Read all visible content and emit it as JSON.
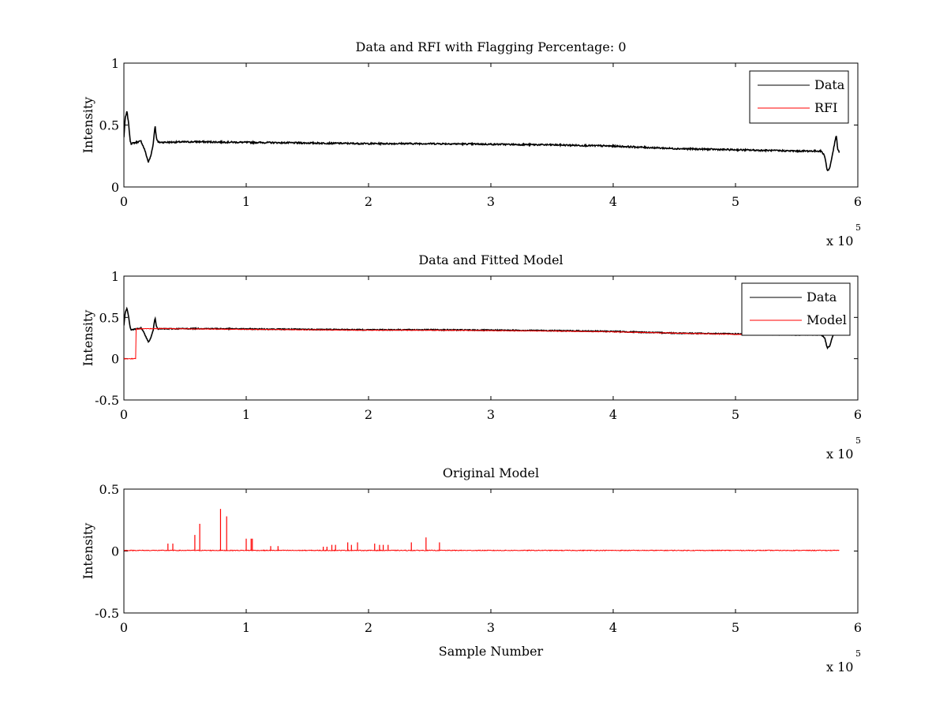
{
  "figure": {
    "background": "#ffffff",
    "data_color": "#000000",
    "rfi_color": "#ff0000"
  },
  "chart_data": [
    {
      "type": "line",
      "title": "Data and RFI with Flagging Percentage: 0",
      "xlabel": "",
      "ylabel": "Intensity",
      "xlim": [
        0,
        600000
      ],
      "ylim": [
        0,
        1
      ],
      "x_ticks": [
        "0",
        "1",
        "2",
        "3",
        "4",
        "5",
        "6"
      ],
      "y_ticks": [
        "0",
        "0.5",
        "1"
      ],
      "y_tick_values": [
        0,
        0.5,
        1
      ],
      "x_exponent": {
        "base": "x 10",
        "power": "5"
      },
      "legend": {
        "position": "top-right",
        "entries": [
          "Data",
          "RFI"
        ]
      },
      "series": [
        {
          "name": "Data",
          "color": "#000000",
          "noise": 0.006,
          "x": [
            0,
            1000,
            2500,
            4000,
            5000,
            6000,
            10000,
            14000,
            17000,
            20000,
            22000,
            24000,
            25500,
            26500,
            28000,
            60000,
            100000,
            150000,
            200000,
            250000,
            300000,
            350000,
            400000,
            450000,
            500000,
            550000,
            565000,
            570000,
            573000,
            575000,
            577000,
            579000,
            581000,
            582500,
            583500,
            585000
          ],
          "y": [
            0.4,
            0.55,
            0.61,
            0.5,
            0.38,
            0.35,
            0.36,
            0.37,
            0.3,
            0.2,
            0.25,
            0.35,
            0.5,
            0.4,
            0.36,
            0.365,
            0.36,
            0.355,
            0.35,
            0.35,
            0.345,
            0.34,
            0.33,
            0.31,
            0.3,
            0.29,
            0.29,
            0.29,
            0.25,
            0.13,
            0.15,
            0.25,
            0.35,
            0.42,
            0.3,
            0.28
          ]
        },
        {
          "name": "RFI",
          "color": "#ff0000",
          "noise": 0,
          "x": [],
          "y": []
        }
      ]
    },
    {
      "type": "line",
      "title": "Data and Fitted Model",
      "xlabel": "",
      "ylabel": "Intensity",
      "xlim": [
        0,
        600000
      ],
      "ylim": [
        -0.5,
        1
      ],
      "x_ticks": [
        "0",
        "1",
        "2",
        "3",
        "4",
        "5",
        "6"
      ],
      "y_ticks": [
        "-0.5",
        "0",
        "0.5",
        "1"
      ],
      "y_tick_values": [
        -0.5,
        0,
        0.5,
        1
      ],
      "x_exponent": {
        "base": "x 10",
        "power": "5"
      },
      "legend": {
        "position": "top-right",
        "entries": [
          "Data",
          "Model"
        ]
      },
      "series": [
        {
          "name": "Data",
          "color": "#000000",
          "noise": 0.006,
          "x": [
            0,
            1000,
            2500,
            4000,
            5000,
            6000,
            10000,
            14000,
            17000,
            20000,
            22000,
            24000,
            25500,
            26500,
            28000,
            60000,
            100000,
            150000,
            200000,
            250000,
            300000,
            350000,
            400000,
            450000,
            500000,
            550000,
            565000,
            570000,
            573000,
            575000,
            577000,
            579000,
            581000,
            582500,
            583500,
            585000
          ],
          "y": [
            0.4,
            0.55,
            0.61,
            0.5,
            0.38,
            0.35,
            0.36,
            0.37,
            0.3,
            0.2,
            0.25,
            0.35,
            0.5,
            0.4,
            0.36,
            0.365,
            0.36,
            0.355,
            0.35,
            0.35,
            0.345,
            0.34,
            0.33,
            0.31,
            0.3,
            0.29,
            0.29,
            0.29,
            0.25,
            0.13,
            0.15,
            0.25,
            0.35,
            0.42,
            0.3,
            0.28
          ]
        },
        {
          "name": "Model",
          "color": "#ff0000",
          "noise": 0.004,
          "x": [
            0,
            9999,
            10000,
            30000,
            60000,
            100000,
            150000,
            200000,
            250000,
            300000,
            350000,
            400000,
            450000,
            500000,
            525000
          ],
          "y": [
            0,
            0,
            0.36,
            0.365,
            0.36,
            0.355,
            0.35,
            0.345,
            0.345,
            0.34,
            0.335,
            0.325,
            0.31,
            0.295,
            0.29
          ]
        }
      ]
    },
    {
      "type": "line",
      "title": "Original Model",
      "xlabel": "Sample Number",
      "ylabel": "Intensity",
      "xlim": [
        0,
        600000
      ],
      "ylim": [
        -0.5,
        0.5
      ],
      "x_ticks": [
        "0",
        "1",
        "2",
        "3",
        "4",
        "5",
        "6"
      ],
      "y_ticks": [
        "-0.5",
        "0",
        "0.5"
      ],
      "y_tick_values": [
        -0.5,
        0,
        0.5
      ],
      "x_exponent": {
        "base": "x 10",
        "power": "5"
      },
      "legend": null,
      "series": [
        {
          "name": "",
          "color": "#ff0000",
          "noise": 0.003,
          "x": [
            0,
            585000
          ],
          "y": [
            0.005,
            0.005
          ]
        }
      ],
      "spikes": {
        "color": "#ff0000",
        "x": [
          36000,
          40000,
          58000,
          62000,
          79000,
          84000,
          100000,
          104000,
          105000,
          120000,
          126000,
          163000,
          166000,
          170000,
          173000,
          183000,
          186000,
          191000,
          205000,
          209000,
          212000,
          216000,
          235000,
          247000,
          258000
        ],
        "y": [
          0.06,
          0.06,
          0.13,
          0.22,
          0.34,
          0.28,
          0.1,
          0.1,
          0.1,
          0.04,
          0.04,
          0.035,
          0.035,
          0.05,
          0.05,
          0.07,
          0.05,
          0.07,
          0.06,
          0.05,
          0.05,
          0.05,
          0.07,
          0.11,
          0.07
        ]
      }
    }
  ]
}
